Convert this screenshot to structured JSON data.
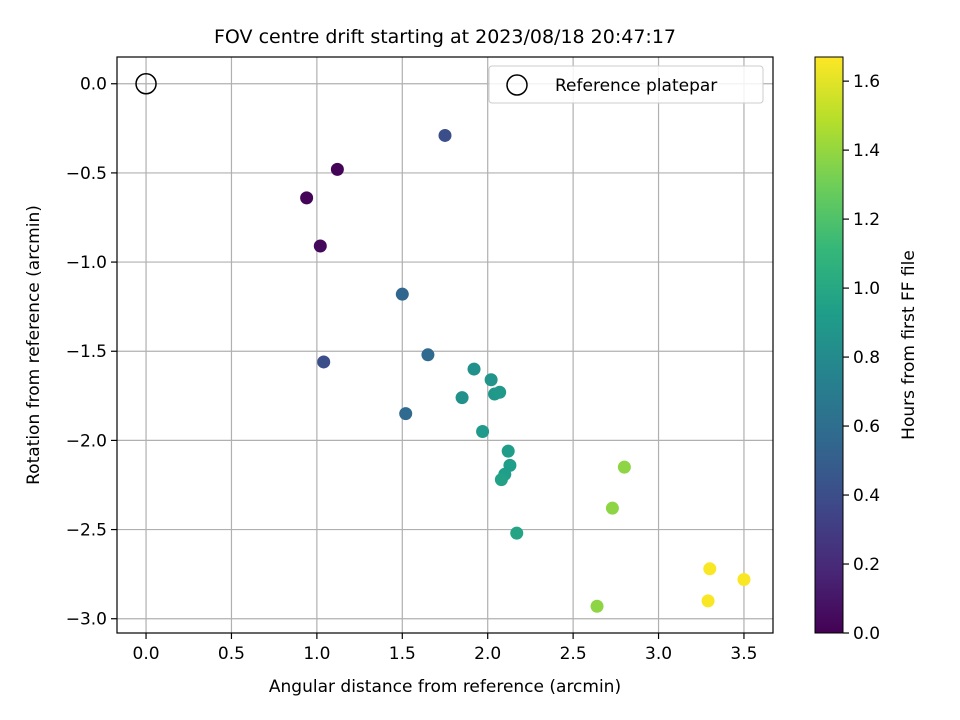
{
  "chart_data": {
    "type": "scatter",
    "title": "FOV centre drift starting at 2023/08/18 20:47:17",
    "xlabel": "Angular distance from reference (arcmin)",
    "ylabel": "Rotation from reference (arcmin)",
    "xlim": [
      -0.17,
      3.67
    ],
    "ylim": [
      -3.08,
      0.15
    ],
    "x_ticks": [
      0.0,
      0.5,
      1.0,
      1.5,
      2.0,
      2.5,
      3.0,
      3.5
    ],
    "x_tick_labels": [
      "0.0",
      "0.5",
      "1.0",
      "1.5",
      "2.0",
      "2.5",
      "3.0",
      "3.5"
    ],
    "y_ticks": [
      0.0,
      -0.5,
      -1.0,
      -1.5,
      -2.0,
      -2.5,
      -3.0
    ],
    "y_tick_labels": [
      "0.0",
      "−0.5",
      "−1.0",
      "−1.5",
      "−2.0",
      "−2.5",
      "−3.0"
    ],
    "grid": true,
    "legend": {
      "placement": "top-right",
      "entries": [
        "Reference platepar"
      ]
    },
    "reference_point": {
      "x": 0.0,
      "y": 0.0
    },
    "colorbar": {
      "label": "Hours from first FF file",
      "range": [
        0.0,
        1.67
      ],
      "ticks": [
        0.0,
        0.2,
        0.4,
        0.6,
        0.8,
        1.0,
        1.2,
        1.4,
        1.6
      ],
      "tick_labels": [
        "0.0",
        "0.2",
        "0.4",
        "0.6",
        "0.8",
        "1.0",
        "1.2",
        "1.4",
        "1.6"
      ],
      "colormap": [
        "#440154",
        "#482878",
        "#3e4989",
        "#31688e",
        "#26828e",
        "#1f9e89",
        "#35b779",
        "#6ece58",
        "#b5de2b",
        "#fde725"
      ]
    },
    "series": [
      {
        "points": [
          {
            "x": 1.12,
            "y": -0.48,
            "c": 0.02
          },
          {
            "x": 0.94,
            "y": -0.64,
            "c": 0.02
          },
          {
            "x": 1.02,
            "y": -0.91,
            "c": 0.04
          },
          {
            "x": 1.75,
            "y": -0.29,
            "c": 0.4
          },
          {
            "x": 1.04,
            "y": -1.56,
            "c": 0.4
          },
          {
            "x": 1.5,
            "y": -1.18,
            "c": 0.55
          },
          {
            "x": 1.65,
            "y": -1.52,
            "c": 0.57
          },
          {
            "x": 1.52,
            "y": -1.85,
            "c": 0.57
          },
          {
            "x": 1.92,
            "y": -1.6,
            "c": 0.84
          },
          {
            "x": 1.85,
            "y": -1.76,
            "c": 0.84
          },
          {
            "x": 2.02,
            "y": -1.66,
            "c": 0.86
          },
          {
            "x": 2.04,
            "y": -1.74,
            "c": 0.88
          },
          {
            "x": 2.07,
            "y": -1.73,
            "c": 0.89
          },
          {
            "x": 1.97,
            "y": -1.95,
            "c": 0.9
          },
          {
            "x": 2.12,
            "y": -2.06,
            "c": 0.92
          },
          {
            "x": 2.13,
            "y": -2.14,
            "c": 0.93
          },
          {
            "x": 2.1,
            "y": -2.19,
            "c": 0.93
          },
          {
            "x": 2.08,
            "y": -2.22,
            "c": 0.95
          },
          {
            "x": 2.17,
            "y": -2.52,
            "c": 0.97
          },
          {
            "x": 2.8,
            "y": -2.15,
            "c": 1.38
          },
          {
            "x": 2.73,
            "y": -2.38,
            "c": 1.38
          },
          {
            "x": 2.64,
            "y": -2.93,
            "c": 1.38
          },
          {
            "x": 3.3,
            "y": -2.72,
            "c": 1.66
          },
          {
            "x": 3.5,
            "y": -2.78,
            "c": 1.66
          },
          {
            "x": 3.29,
            "y": -2.9,
            "c": 1.66
          }
        ]
      }
    ]
  }
}
